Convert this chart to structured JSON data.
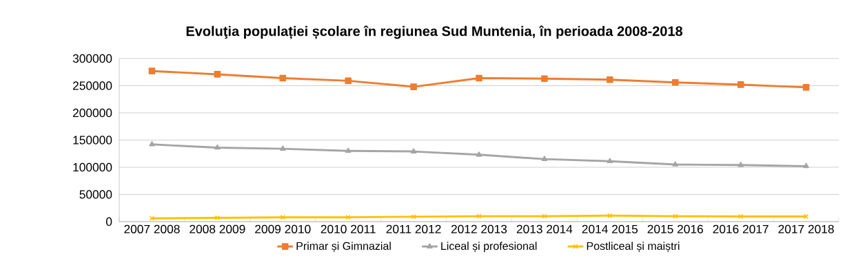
{
  "chart_data": {
    "type": "line",
    "title": "Evoluţia populației școlare în regiunea Sud Muntenia, în perioada 2008-2018",
    "categories": [
      "2007 2008",
      "2008 2009",
      "2009 2010",
      "2010 2011",
      "2011 2012",
      "2012 2013",
      "2013 2014",
      "2014 2015",
      "2015 2016",
      "2016 2017",
      "2017 2018"
    ],
    "series": [
      {
        "name": "Primar și Gimnazial",
        "color": "#ed7d31",
        "marker": "square",
        "values": [
          277000,
          271000,
          264000,
          259000,
          248000,
          264000,
          263000,
          261000,
          256000,
          252000,
          247000
        ]
      },
      {
        "name": "Liceal și profesional",
        "color": "#a5a5a5",
        "marker": "triangle",
        "values": [
          142000,
          136000,
          134000,
          130000,
          129000,
          123000,
          115000,
          111000,
          105000,
          104000,
          102000
        ]
      },
      {
        "name": "Postliceal și maiștri",
        "color": "#ffc000",
        "marker": "cross",
        "values": [
          6000,
          7000,
          8000,
          8000,
          9000,
          10000,
          10000,
          11000,
          10000,
          9500,
          9500
        ]
      }
    ],
    "ylim": [
      0,
      300000
    ],
    "yticks": [
      0,
      50000,
      100000,
      150000,
      200000,
      250000,
      300000
    ],
    "grid": "y",
    "legend": "bottom"
  }
}
